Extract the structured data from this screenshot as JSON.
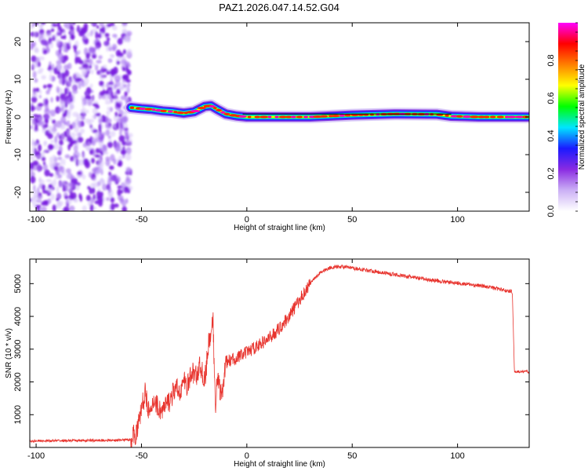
{
  "title": "PAZ1.2026.047.14.52.G04",
  "chart_data": [
    {
      "type": "heatmap",
      "name": "spectrogram",
      "xlabel": "Height of straight line (km)",
      "ylabel": "Frequency (Hz)",
      "xlim": [
        -103,
        134
      ],
      "ylim": [
        -25,
        25
      ],
      "x_ticks": [
        -100,
        -50,
        0,
        50,
        100
      ],
      "y_ticks": [
        -20,
        -10,
        0,
        10,
        20
      ],
      "noise_region_x": [
        -103,
        -55
      ],
      "signal_track": [
        {
          "x": -55,
          "f": 2.5
        },
        {
          "x": -50,
          "f": 2.2
        },
        {
          "x": -45,
          "f": 2.0
        },
        {
          "x": -40,
          "f": 1.6
        },
        {
          "x": -35,
          "f": 1.4
        },
        {
          "x": -30,
          "f": 1.0
        },
        {
          "x": -25,
          "f": 1.4
        },
        {
          "x": -20,
          "f": 2.8
        },
        {
          "x": -17,
          "f": 3.0
        },
        {
          "x": -14,
          "f": 2.0
        },
        {
          "x": -10,
          "f": 0.8
        },
        {
          "x": -5,
          "f": 0.3
        },
        {
          "x": 0,
          "f": 0.0
        },
        {
          "x": 10,
          "f": 0.0
        },
        {
          "x": 30,
          "f": 0.0
        },
        {
          "x": 50,
          "f": 0.5
        },
        {
          "x": 70,
          "f": 0.8
        },
        {
          "x": 90,
          "f": 0.7
        },
        {
          "x": 97,
          "f": 0.2
        },
        {
          "x": 110,
          "f": 0.0
        },
        {
          "x": 134,
          "f": 0.0
        }
      ],
      "colorbar": {
        "label": "Normalized spectral amplitude",
        "range": [
          0,
          1
        ],
        "ticks": [
          "0.0",
          "0.2",
          "0.4",
          "0.6",
          "0.8"
        ],
        "colors": [
          "#ffffff",
          "#cbb0f5",
          "#8a2be2",
          "#1a1aff",
          "#00e5ff",
          "#00ff00",
          "#ffff00",
          "#ff7f00",
          "#ff0000",
          "#ff00ff"
        ]
      }
    },
    {
      "type": "line",
      "name": "snr",
      "xlabel": "Height of straight line (km)",
      "ylabel": "SNR (10 * v/v)",
      "xlim": [
        -103,
        134
      ],
      "ylim": [
        0,
        5750
      ],
      "x_ticks": [
        -100,
        -50,
        0,
        50,
        100
      ],
      "y_ticks": [
        1000,
        2000,
        3000,
        4000,
        5000
      ],
      "color": "#e8342e",
      "series": [
        {
          "x": -103,
          "y": 200
        },
        {
          "x": -80,
          "y": 210
        },
        {
          "x": -60,
          "y": 220
        },
        {
          "x": -55,
          "y": 250
        },
        {
          "x": -52,
          "y": 500
        },
        {
          "x": -50,
          "y": 1200
        },
        {
          "x": -48,
          "y": 1700
        },
        {
          "x": -46,
          "y": 900
        },
        {
          "x": -44,
          "y": 1500
        },
        {
          "x": -42,
          "y": 1200
        },
        {
          "x": -40,
          "y": 1100
        },
        {
          "x": -38,
          "y": 1300
        },
        {
          "x": -36,
          "y": 1500
        },
        {
          "x": -34,
          "y": 1800
        },
        {
          "x": -32,
          "y": 1700
        },
        {
          "x": -30,
          "y": 2000
        },
        {
          "x": -28,
          "y": 1900
        },
        {
          "x": -26,
          "y": 2300
        },
        {
          "x": -24,
          "y": 2200
        },
        {
          "x": -22,
          "y": 2500
        },
        {
          "x": -20,
          "y": 2000
        },
        {
          "x": -18,
          "y": 3200
        },
        {
          "x": -16,
          "y": 3800
        },
        {
          "x": -15,
          "y": 1200
        },
        {
          "x": -14,
          "y": 2200
        },
        {
          "x": -12,
          "y": 1500
        },
        {
          "x": -10,
          "y": 2600
        },
        {
          "x": -6,
          "y": 2700
        },
        {
          "x": 0,
          "y": 2900
        },
        {
          "x": 5,
          "y": 3100
        },
        {
          "x": 10,
          "y": 3300
        },
        {
          "x": 15,
          "y": 3600
        },
        {
          "x": 20,
          "y": 4000
        },
        {
          "x": 25,
          "y": 4500
        },
        {
          "x": 30,
          "y": 5000
        },
        {
          "x": 35,
          "y": 5350
        },
        {
          "x": 40,
          "y": 5500
        },
        {
          "x": 45,
          "y": 5520
        },
        {
          "x": 55,
          "y": 5430
        },
        {
          "x": 65,
          "y": 5330
        },
        {
          "x": 75,
          "y": 5230
        },
        {
          "x": 85,
          "y": 5130
        },
        {
          "x": 95,
          "y": 5050
        },
        {
          "x": 105,
          "y": 4980
        },
        {
          "x": 115,
          "y": 4900
        },
        {
          "x": 122,
          "y": 4800
        },
        {
          "x": 126,
          "y": 4750
        },
        {
          "x": 127,
          "y": 2300
        },
        {
          "x": 130,
          "y": 2320
        },
        {
          "x": 134,
          "y": 2310
        }
      ]
    }
  ]
}
